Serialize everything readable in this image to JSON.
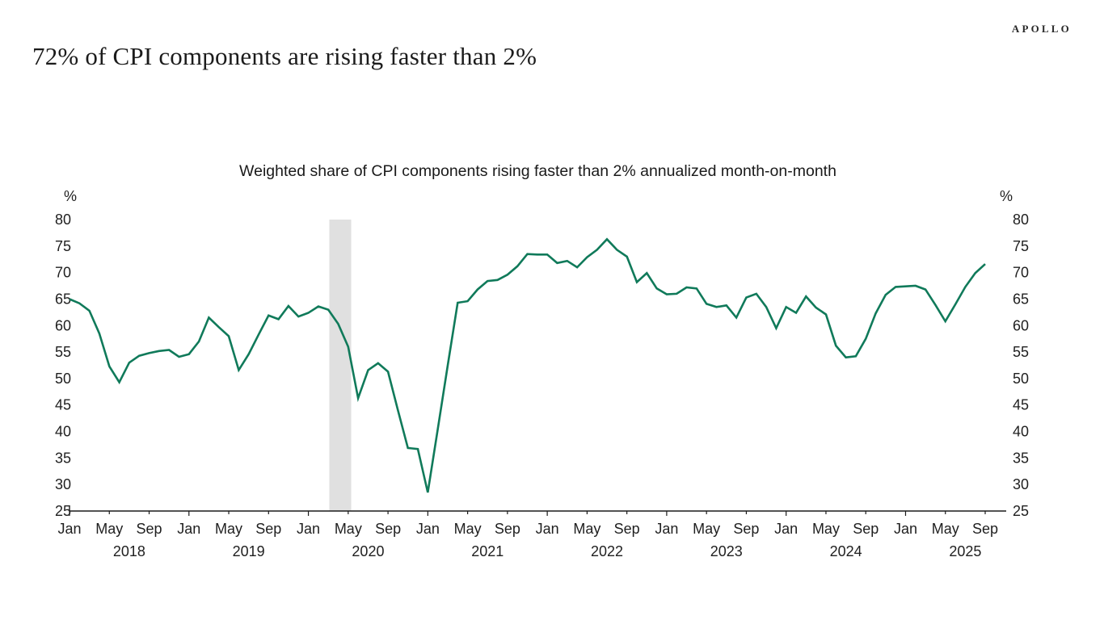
{
  "header": {
    "title": "72% of CPI components are rising faster than 2%",
    "logo": "APOLLO"
  },
  "chart": {
    "y_unit": "%"
  },
  "chart_data": {
    "type": "line",
    "title": "Weighted share of CPI components rising faster than 2% annualized month-on-month",
    "ylabel": "%",
    "ylim": [
      25,
      80
    ],
    "y_ticks": [
      25,
      30,
      35,
      40,
      45,
      50,
      55,
      60,
      65,
      70,
      75,
      80
    ],
    "y_axis_labels_both_sides": true,
    "grid": false,
    "x_start": "2018-01",
    "x_end": "2025-09",
    "x_tick_months": [
      "Jan",
      "May",
      "Sep"
    ],
    "years": [
      "2018",
      "2019",
      "2020",
      "2021",
      "2022",
      "2023",
      "2024",
      "2025"
    ],
    "shaded_band": {
      "period": "2020-03 to 2020-05",
      "start_month_index": 26.1,
      "end_month_index": 28.3,
      "color": "#e0e0e0"
    },
    "series": [
      {
        "name": "Weighted share of CPI components rising faster than 2% annualized month-on-month",
        "color": "#107a5a",
        "start": "2018-01",
        "frequency": "monthly",
        "values": [
          65.0,
          64.2,
          62.8,
          58.5,
          52.3,
          49.3,
          53.0,
          54.3,
          54.8,
          55.2,
          55.4,
          54.1,
          54.6,
          57.0,
          61.5,
          59.7,
          58.0,
          51.6,
          54.6,
          58.3,
          61.9,
          61.2,
          63.7,
          61.7,
          62.4,
          63.6,
          63.0,
          60.3,
          56.0,
          46.3,
          51.6,
          52.9,
          51.3,
          44.0,
          36.9,
          36.7,
          28.5,
          40.5,
          52.5,
          64.3,
          64.6,
          66.8,
          68.4,
          68.6,
          69.6,
          71.2,
          73.5,
          73.4,
          73.4,
          71.8,
          72.2,
          71.0,
          72.9,
          74.3,
          76.3,
          74.3,
          73.0,
          68.2,
          69.9,
          67.0,
          65.9,
          66.0,
          67.2,
          67.0,
          64.1,
          63.5,
          63.8,
          61.5,
          65.3,
          66.0,
          63.5,
          59.5,
          63.5,
          62.4,
          65.5,
          63.4,
          62.1,
          56.2,
          54.0,
          54.2,
          57.5,
          62.3,
          65.8,
          67.3,
          67.4,
          67.5,
          66.8,
          63.9,
          60.8,
          64.0,
          67.3,
          69.9,
          71.6
        ]
      }
    ]
  }
}
